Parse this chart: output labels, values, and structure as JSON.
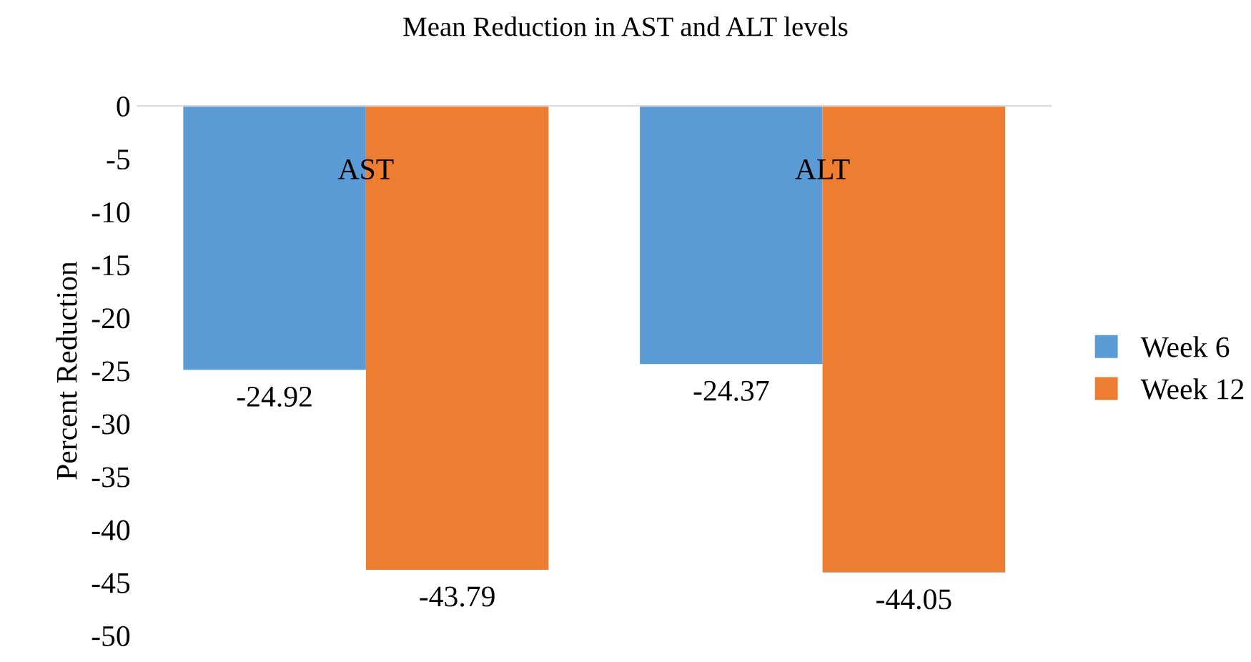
{
  "chart_data": {
    "type": "bar",
    "title": "Mean Reduction in AST and ALT levels",
    "ylabel": "Percent Reduction",
    "categories": [
      "AST",
      "ALT"
    ],
    "series": [
      {
        "name": "Week 6",
        "color": "#5b9bd5",
        "values": [
          -24.92,
          -24.37
        ]
      },
      {
        "name": "Week 12",
        "color": "#ed7d31",
        "values": [
          -43.79,
          -44.05
        ]
      }
    ],
    "ylim": [
      -50,
      0
    ],
    "yticks": [
      0,
      -5,
      -10,
      -15,
      -20,
      -25,
      -30,
      -35,
      -40,
      -45,
      -50
    ],
    "data_labels": true,
    "grid": false,
    "legend": "right"
  }
}
